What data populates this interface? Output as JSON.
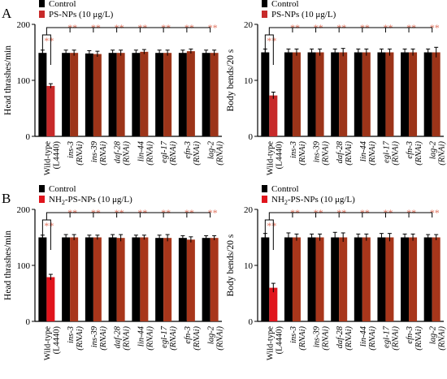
{
  "figure": {
    "panel_labels": [
      "A",
      "B"
    ],
    "colors": {
      "control": "#000000",
      "ps_nps_wildtype": "#c72a2a",
      "ps_nps_rnai": "#9c3419",
      "nh2_wildtype": "#e0141c",
      "nh2_rnai": "#a8361b",
      "significance": "#e0715c"
    }
  },
  "chart_data": [
    {
      "type": "bar",
      "panel": "A",
      "ylabel": "Head thrashes/min",
      "ylim": [
        0,
        200
      ],
      "yticks": [
        0,
        100,
        200
      ],
      "legend": [
        "Control",
        "PS-NPs (10 μg/L)"
      ],
      "legend_placement": "top-left",
      "categories": [
        {
          "name": "Wild-type",
          "sub": "(L4440)",
          "italic": false
        },
        {
          "name": "ins-3",
          "sub": "(RNAi)",
          "italic": true
        },
        {
          "name": "ins-39",
          "sub": "(RNAi)",
          "italic": true
        },
        {
          "name": "daf-28",
          "sub": "(RNAi)",
          "italic": true
        },
        {
          "name": "lin-44",
          "sub": "(RNAi)",
          "italic": true
        },
        {
          "name": "egl-17",
          "sub": "(RNAi)",
          "italic": true
        },
        {
          "name": "efn-3",
          "sub": "(RNAi)",
          "italic": true
        },
        {
          "name": "lag-2",
          "sub": "(RNAi)",
          "italic": true
        }
      ],
      "series": [
        {
          "name": "Control",
          "values": [
            149,
            149,
            148,
            149,
            149,
            149,
            149,
            149
          ],
          "errors": [
            5,
            5,
            5,
            5,
            5,
            5,
            5,
            5
          ]
        },
        {
          "name": "PS-NPs (10 μg/L)",
          "values": [
            90,
            149,
            147,
            149,
            151,
            149,
            152,
            149
          ],
          "errors": [
            4,
            5,
            5,
            5,
            4,
            5,
            4,
            5
          ]
        }
      ],
      "significance": "**"
    },
    {
      "type": "bar",
      "panel": "A",
      "ylabel": "Body bends/20 s",
      "ylim": [
        0,
        20
      ],
      "yticks": [
        0,
        10,
        20
      ],
      "legend": [
        "Control",
        "PS-NPs (10 μg/L)"
      ],
      "legend_placement": "top-left",
      "categories": [
        {
          "name": "Wild-type",
          "sub": "(L4440)",
          "italic": false
        },
        {
          "name": "ins-3",
          "sub": "(RNAi)",
          "italic": true
        },
        {
          "name": "ins-39",
          "sub": "(RNAi)",
          "italic": true
        },
        {
          "name": "daf-28",
          "sub": "(RNAi)",
          "italic": true
        },
        {
          "name": "lin-44",
          "sub": "(RNAi)",
          "italic": true
        },
        {
          "name": "egl-17",
          "sub": "(RNAi)",
          "italic": true
        },
        {
          "name": "efn-3",
          "sub": "(RNAi)",
          "italic": true
        },
        {
          "name": "lag-2",
          "sub": "(RNAi)",
          "italic": true
        }
      ],
      "series": [
        {
          "name": "Control",
          "values": [
            15,
            15,
            15,
            15,
            15,
            15,
            15,
            15
          ],
          "errors": [
            0.6,
            0.6,
            0.6,
            0.6,
            0.6,
            0.6,
            0.6,
            0.6
          ]
        },
        {
          "name": "PS-NPs (10 μg/L)",
          "values": [
            7.3,
            15,
            15,
            15,
            15,
            15,
            15,
            15
          ],
          "errors": [
            0.6,
            0.6,
            0.6,
            0.7,
            0.6,
            0.6,
            0.6,
            0.9
          ]
        }
      ],
      "significance": "**"
    },
    {
      "type": "bar",
      "panel": "B",
      "ylabel": "Head thrashes/min",
      "ylim": [
        0,
        200
      ],
      "yticks": [
        0,
        100,
        200
      ],
      "legend": [
        "Control",
        "NH2-PS-NPs (10 μg/L)"
      ],
      "legend_placement": "top-left",
      "categories": [
        {
          "name": "Wild-type",
          "sub": "(L4440)",
          "italic": false
        },
        {
          "name": "ins-3",
          "sub": "(RNAi)",
          "italic": true
        },
        {
          "name": "ins-39",
          "sub": "(RNAi)",
          "italic": true
        },
        {
          "name": "daf-28",
          "sub": "(RNAi)",
          "italic": true
        },
        {
          "name": "lin-44",
          "sub": "(RNAi)",
          "italic": true
        },
        {
          "name": "egl-17",
          "sub": "(RNAi)",
          "italic": true
        },
        {
          "name": "efn-3",
          "sub": "(RNAi)",
          "italic": true
        },
        {
          "name": "lag-2",
          "sub": "(RNAi)",
          "italic": true
        }
      ],
      "series": [
        {
          "name": "Control",
          "values": [
            150,
            150,
            150,
            150,
            150,
            149,
            149,
            149
          ],
          "errors": [
            4,
            5,
            4,
            5,
            4,
            5,
            4,
            4
          ]
        },
        {
          "name": "NH2-PS-NPs (10 μg/L)",
          "values": [
            79,
            150,
            150,
            149,
            150,
            149,
            146,
            149
          ],
          "errors": [
            5,
            5,
            4,
            6,
            4,
            6,
            5,
            4
          ]
        }
      ],
      "significance": "**"
    },
    {
      "type": "bar",
      "panel": "B",
      "ylabel": "Body bends/20 s",
      "ylim": [
        0,
        20
      ],
      "yticks": [
        0,
        10,
        20
      ],
      "legend": [
        "Control",
        "NH2-PS-NPs (10 μg/L)"
      ],
      "legend_placement": "top-left",
      "categories": [
        {
          "name": "Wild-type",
          "sub": "(L4440)",
          "italic": false
        },
        {
          "name": "ins-3",
          "sub": "(RNAi)",
          "italic": true
        },
        {
          "name": "ins-39",
          "sub": "(RNAi)",
          "italic": true
        },
        {
          "name": "daf-28",
          "sub": "(RNAi)",
          "italic": true
        },
        {
          "name": "lin-44",
          "sub": "(RNAi)",
          "italic": true
        },
        {
          "name": "egl-17",
          "sub": "(RNAi)",
          "italic": true
        },
        {
          "name": "efn-3",
          "sub": "(RNAi)",
          "italic": true
        },
        {
          "name": "lag-2",
          "sub": "(RNAi)",
          "italic": true
        }
      ],
      "series": [
        {
          "name": "Control",
          "values": [
            15,
            15,
            15,
            15,
            15,
            15,
            15,
            15
          ],
          "errors": [
            0.7,
            0.8,
            0.6,
            0.9,
            0.6,
            0.7,
            0.6,
            0.5
          ]
        },
        {
          "name": "NH2-PS-NPs (10 μg/L)",
          "values": [
            6,
            15,
            15,
            15,
            15,
            15,
            15,
            15
          ],
          "errors": [
            0.8,
            0.6,
            0.6,
            0.8,
            0.6,
            0.7,
            0.6,
            0.5
          ]
        }
      ],
      "significance": "**"
    }
  ]
}
